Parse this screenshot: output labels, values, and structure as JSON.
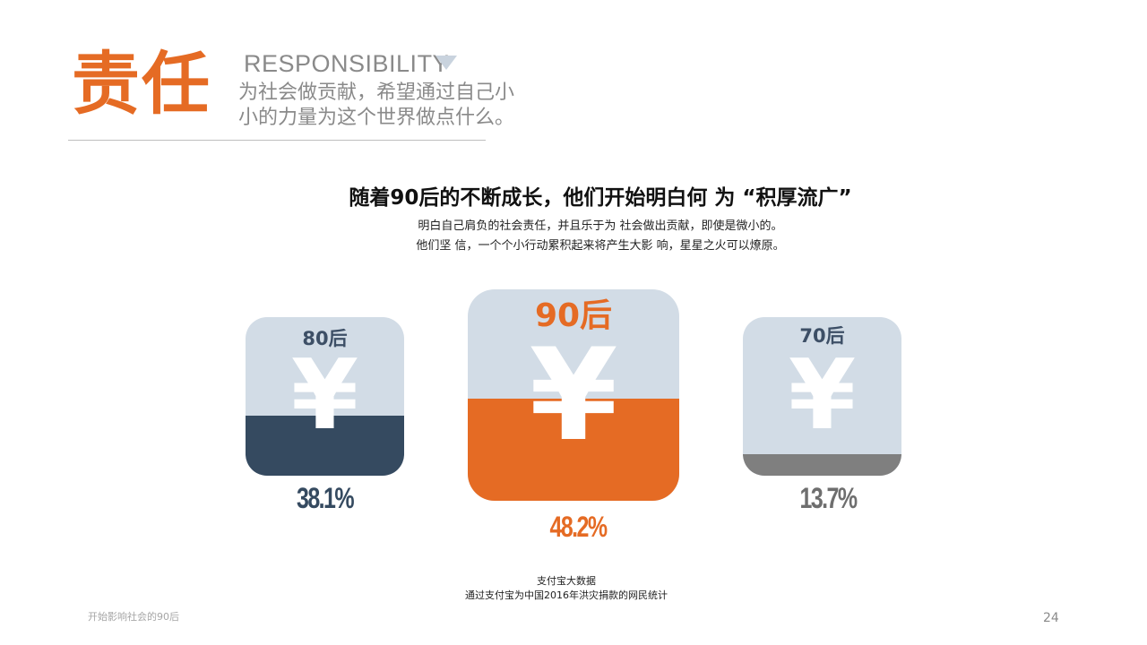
{
  "header": {
    "title": "责任",
    "english_title": "RESPONSIBILITY",
    "title_icon": "triangle-down-icon",
    "subtitle_line1": "为社会做贡献，希望通过自己小",
    "subtitle_line2": "小的力量为这个世界做点什么。"
  },
  "main": {
    "headline": "随着90后的不断成长，他们开始明白何 为 “积厚流广”",
    "description_line1": "明白自己肩负的社会责任，并且乐于为 社会做出贡献，即使是微小的。",
    "description_line2": "他们坚 信，一个个小行动累积起来将产生大影 响，星星之火可以燎原。"
  },
  "cards": [
    {
      "label": "80后",
      "symbol": "¥",
      "percent": "38.1%",
      "fill_fraction": 0.381,
      "fill_color": "#354A60"
    },
    {
      "label": "90后",
      "symbol": "¥",
      "percent": "48.2%",
      "fill_fraction": 0.482,
      "fill_color": "#E56B24"
    },
    {
      "label": "70后",
      "symbol": "¥",
      "percent": "13.7%",
      "fill_fraction": 0.137,
      "fill_color": "#7F7F7F"
    }
  ],
  "source": {
    "line1": "支付宝大数据",
    "line2": "通过支付宝为中国2016年洪灾捐款的网民统计"
  },
  "footer": {
    "text": "开始影响社会的90后",
    "page_number": "24"
  },
  "colors": {
    "accent": "#E56B24",
    "navy": "#354A60",
    "gray": "#7F7F7F",
    "card_bg": "#D2DCE6"
  }
}
